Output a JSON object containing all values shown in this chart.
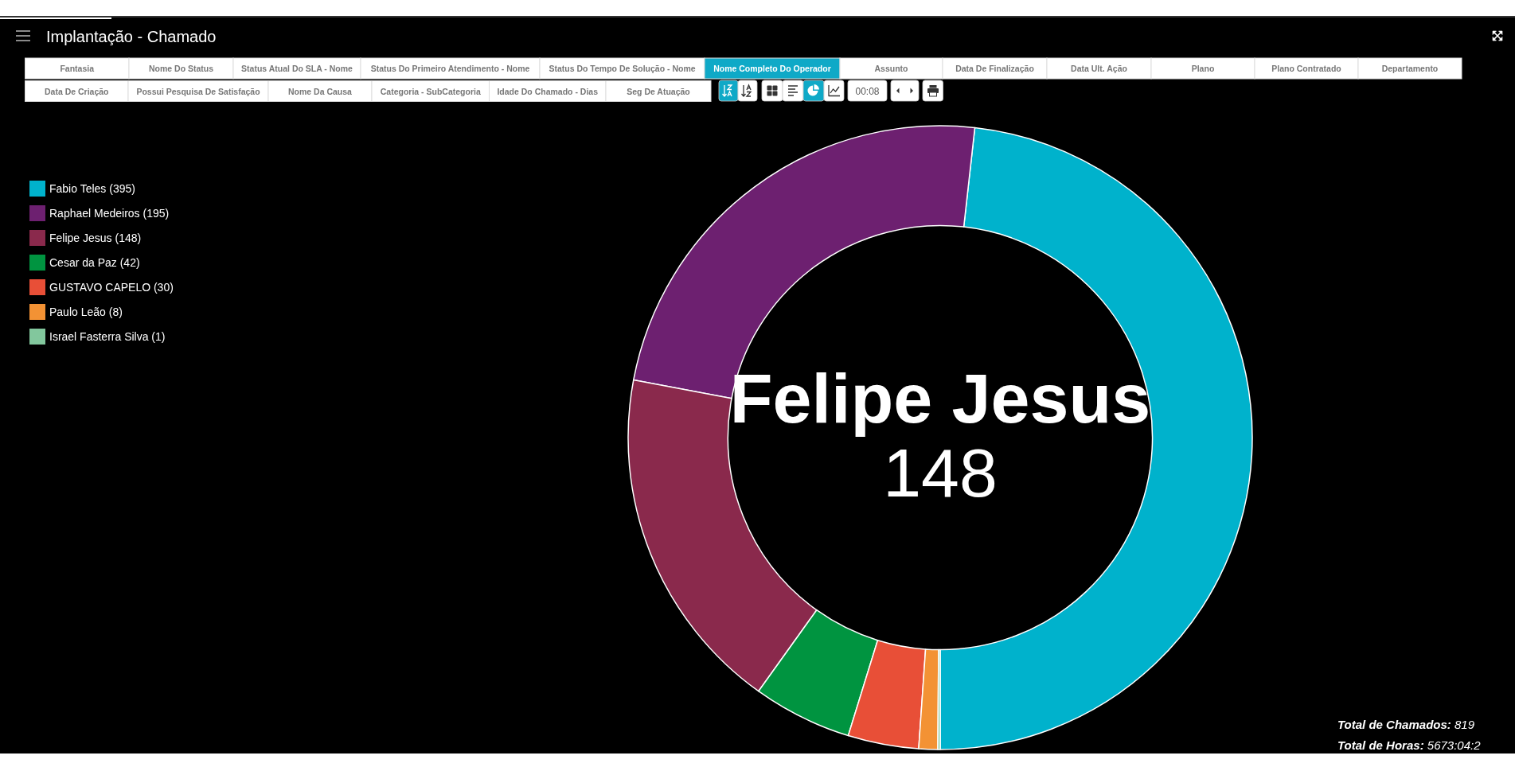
{
  "chart_data": {
    "type": "donut",
    "title": "Implantação - Chamado",
    "categories": [
      "Fabio Teles (395)",
      "Raphael Medeiros (195)",
      "Felipe Jesus (148)",
      "Cesar da Paz (42)",
      "GUSTAVO CAPELO (30)",
      "Paulo Leão (8)",
      "Israel Fasterra Silva (1)"
    ],
    "values": [
      395,
      195,
      148,
      42,
      30,
      8,
      1
    ],
    "colors": [
      "#00b2cc",
      "#6d2070",
      "#8a294c",
      "#009440",
      "#e84f37",
      "#f39234",
      "#82c79d"
    ],
    "legend": "top left",
    "annotations": [
      "Fantasia",
      "Nome Do Status",
      "Status Atual Do SLA - Nome",
      "Status Do Primeiro Atendimento - Nome",
      "Status Do Tempo De Solução - Nome",
      "Nome Completo Do Operador",
      "Assunto",
      "Data De Finalização",
      "Data Ult. Ação",
      "Plano",
      "Plano Contratado",
      "Departamento",
      "Data De Criação",
      "Possui Pesquisa De Satisfação",
      "Nome Da Causa",
      "Categoria - SubCategoria",
      "Idade Do Chamado - Dias",
      "Seg De Atuação",
      "00:08",
      "Felipe Jesus",
      "148",
      "Total de Chamados: 819",
      "Total de Horas: 5673:04:2"
    ]
  }
}
